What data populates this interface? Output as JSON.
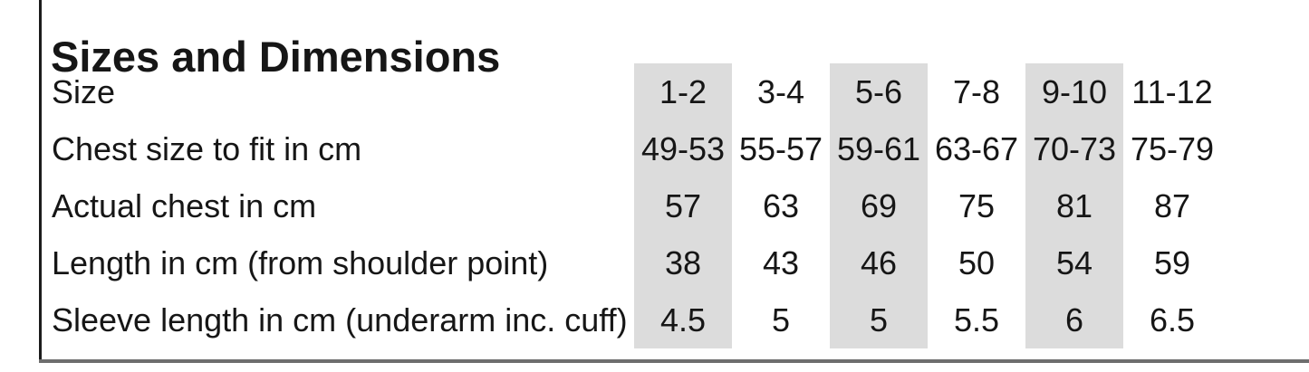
{
  "title": "Sizes and Dimensions",
  "table": {
    "rows": [
      {
        "label": "Size",
        "values": [
          "1-2",
          "3-4",
          "5-6",
          "7-8",
          "9-10",
          "11-12"
        ]
      },
      {
        "label": "Chest size to fit in cm",
        "values": [
          "49-53",
          "55-57",
          "59-61",
          "63-67",
          "70-73",
          "75-79"
        ]
      },
      {
        "label": "Actual chest in cm",
        "values": [
          "57",
          "63",
          "69",
          "75",
          "81",
          "87"
        ]
      },
      {
        "label": "Length in cm (from shoulder point)",
        "values": [
          "38",
          "43",
          "46",
          "50",
          "54",
          "59"
        ]
      },
      {
        "label": "Sleeve length in cm (underarm inc. cuff)",
        "values": [
          "4.5",
          "5",
          "5",
          "5.5",
          "6",
          "6.5"
        ]
      }
    ]
  },
  "colors": {
    "shade": "#dcdcdc",
    "text": "#161616",
    "border": "#1c1c1c",
    "rule": "#6e6e6e",
    "background": "#ffffff"
  }
}
